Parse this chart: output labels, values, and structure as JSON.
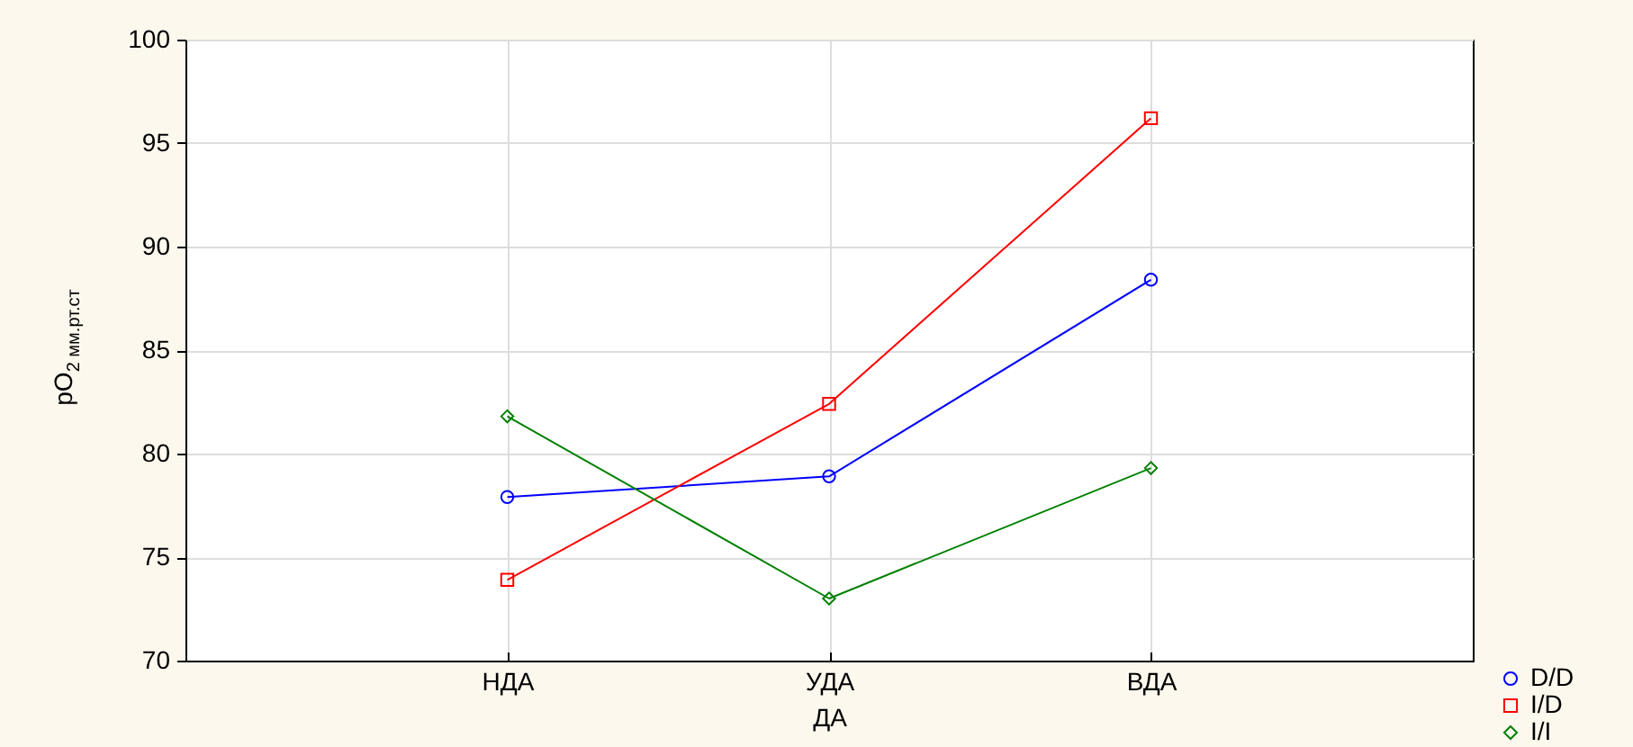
{
  "chart_data": {
    "type": "line",
    "xlabel": "ДА",
    "ylabel": "pO$_{2 мм.рт.ст}$",
    "categories": [
      "НДА",
      "УДА",
      "ВДА"
    ],
    "ylim": [
      70,
      100
    ],
    "yticks": [
      70,
      75,
      80,
      85,
      90,
      95,
      100
    ],
    "grid": true,
    "legend": "bottom right",
    "line_style": "solid",
    "series": [
      {
        "name": "D/D",
        "color": "#0000ff",
        "marker": "circle",
        "values": [
          77.9,
          78.9,
          88.4
        ]
      },
      {
        "name": "I/D",
        "color": "#ff0000",
        "marker": "square",
        "values": [
          73.9,
          82.4,
          96.2
        ]
      },
      {
        "name": "I/I",
        "color": "#008000",
        "marker": "diamond",
        "values": [
          81.8,
          73.0,
          79.3
        ]
      }
    ]
  }
}
